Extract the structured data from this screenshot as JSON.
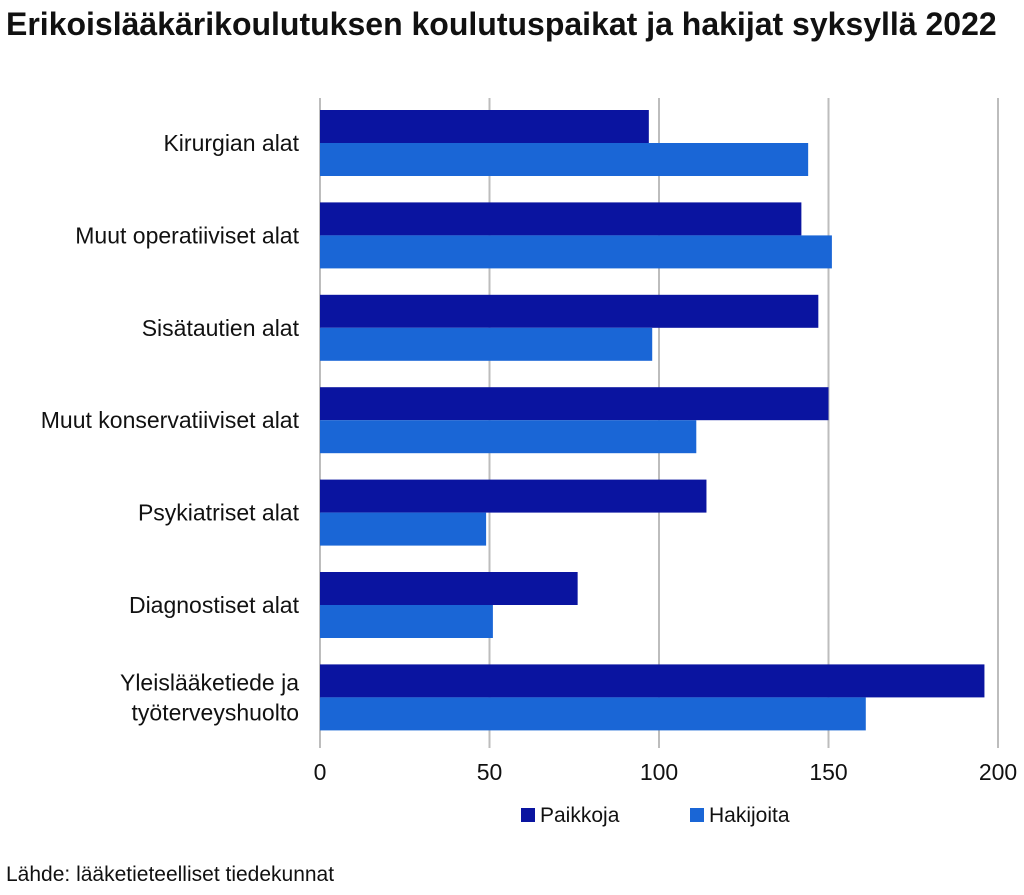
{
  "title": "Erikoislääkärikoulutuksen koulutuspaikat ja hakijat syksyllä 2022",
  "source": "Lähde: lääketieteelliset tiedekunnat",
  "colors": {
    "paikkoja": "#0a14a0",
    "hakijoita": "#1a66d6",
    "grid": "#bdbdbd",
    "text": "#111111"
  },
  "chart_data": {
    "type": "bar",
    "orientation": "horizontal",
    "categories": [
      "Kirurgian alat",
      "Muut operatiiviset alat",
      "Sisätautien alat",
      "Muut konservatiiviset alat",
      "Psykiatriset alat",
      "Diagnostiset alat",
      "Yleislääketiede ja työterveyshuolto"
    ],
    "category_lines": [
      [
        "Kirurgian alat"
      ],
      [
        "Muut operatiiviset alat"
      ],
      [
        "Sisätautien alat"
      ],
      [
        "Muut konservatiiviset alat"
      ],
      [
        "Psykiatriset alat"
      ],
      [
        "Diagnostiset alat"
      ],
      [
        "Yleislääketiede ja",
        "työterveyshuolto"
      ]
    ],
    "series": [
      {
        "name": "Paikkoja",
        "values": [
          97,
          142,
          147,
          150,
          114,
          76,
          196
        ]
      },
      {
        "name": "Hakijoita",
        "values": [
          144,
          151,
          98,
          111,
          49,
          51,
          161
        ]
      }
    ],
    "xlim": [
      0,
      200
    ],
    "xticks": [
      "0",
      "50",
      "100",
      "150",
      "200"
    ],
    "xlabel": "",
    "ylabel": "",
    "grid": true,
    "legend": "bottom"
  }
}
